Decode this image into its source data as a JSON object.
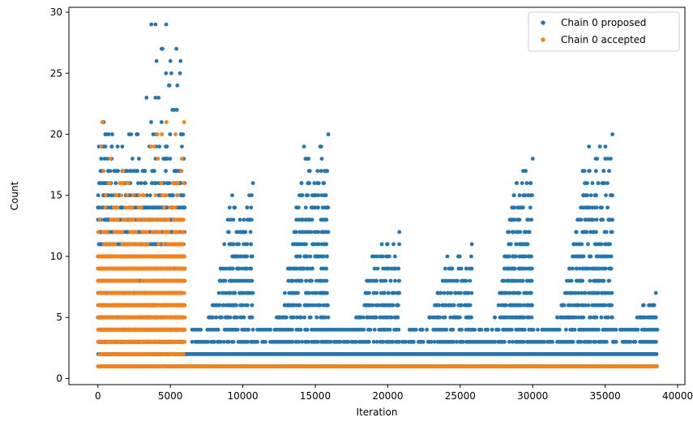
{
  "chart_data": {
    "type": "scatter",
    "title": "",
    "xlabel": "Iteration",
    "ylabel": "Count",
    "xlim": [
      -2000,
      40500
    ],
    "ylim": [
      -0.5,
      30.4
    ],
    "xticks": [
      0,
      5000,
      10000,
      15000,
      20000,
      25000,
      30000,
      35000,
      40000
    ],
    "yticks": [
      0,
      5,
      10,
      15,
      20,
      25,
      30
    ],
    "grid": false,
    "legend_position": "top-right",
    "series": [
      {
        "name": "Chain 0 proposed",
        "color": "#1f77b4",
        "description_points": {
          "phase1": {
            "x_range": [
              0,
              6000
            ],
            "y_values": [
              1,
              2,
              3,
              4,
              5,
              6,
              7,
              8,
              9,
              10,
              11,
              12,
              13,
              14,
              15,
              16,
              17,
              18,
              19,
              20,
              21,
              22,
              23,
              24,
              25,
              26,
              27,
              29
            ]
          },
          "phase2": {
            "x_range": [
              6000,
              38600
            ],
            "base_y_values": [
              1,
              2,
              3,
              4
            ],
            "peaks": [
              {
                "x": 10700,
                "max": 16
              },
              {
                "x": 15900,
                "max": 20
              },
              {
                "x": 20800,
                "max": 12
              },
              {
                "x": 25800,
                "max": 11
              },
              {
                "x": 30000,
                "max": 18
              },
              {
                "x": 35500,
                "max": 20
              },
              {
                "x": 38500,
                "max": 7
              }
            ]
          }
        }
      },
      {
        "name": "Chain 0 accepted",
        "color": "#ff7f0e",
        "description_points": {
          "phase1": {
            "x_range": [
              0,
              6000
            ],
            "y_values": [
              1,
              2,
              3,
              4,
              5,
              6,
              7,
              8,
              9,
              10,
              11,
              12,
              13,
              14,
              15,
              16,
              17,
              18,
              19,
              20,
              21
            ]
          },
          "phase2": {
            "x_range": [
              6000,
              38600
            ],
            "y_values": [
              1
            ]
          }
        }
      }
    ]
  }
}
